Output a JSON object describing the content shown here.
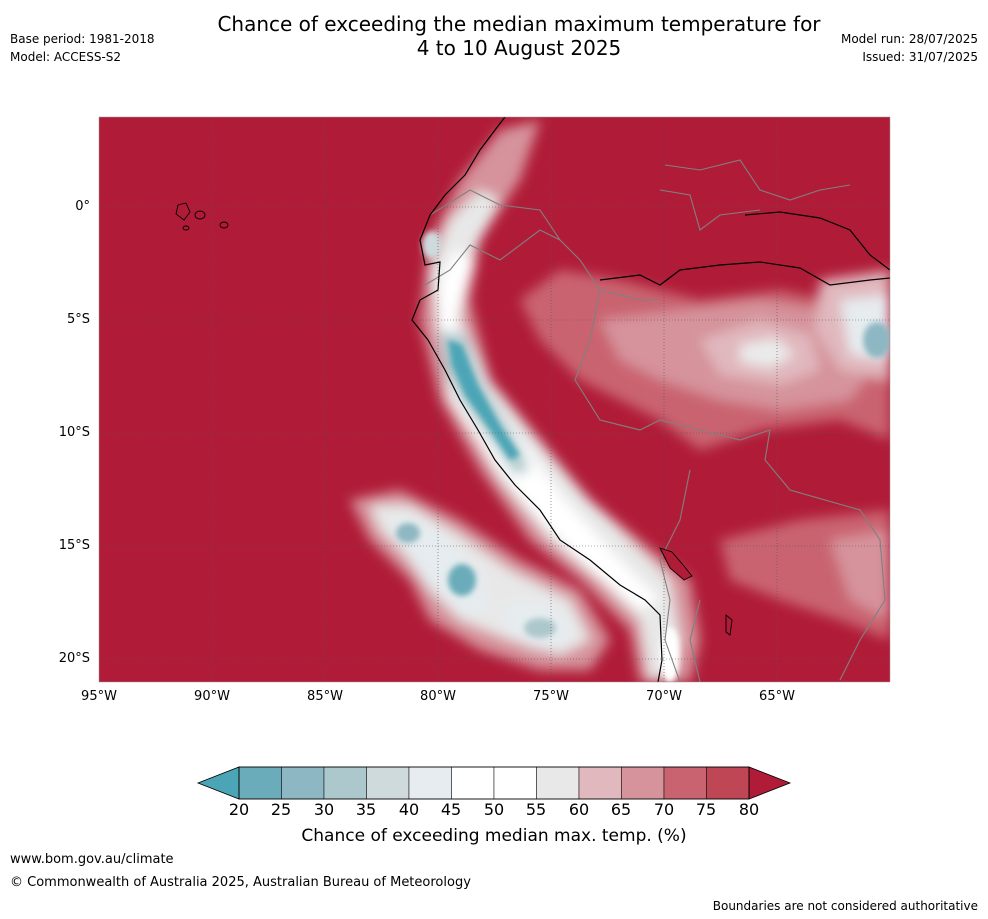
{
  "header": {
    "title_line1": "Chance of exceeding the median maximum temperature for",
    "title_line2": "4 to 10 August 2025",
    "base_period": "Base period: 1981-2018",
    "model": "Model: ACCESS-S2",
    "model_run": "Model run: 28/07/2025",
    "issued": "Issued: 31/07/2025"
  },
  "map": {
    "lat_labels": [
      "0°",
      "5°S",
      "10°S",
      "15°S",
      "20°S"
    ],
    "lon_labels": [
      "95°W",
      "90°W",
      "85°W",
      "80°W",
      "75°W",
      "70°W",
      "65°W"
    ],
    "colors": {
      "above_80": "#b01c38",
      "c75_80": "#bf4655",
      "c70_75": "#c96370",
      "c65_70": "#d6939b",
      "c60_65": "#e0b8bd",
      "c55_60": "#ebebeb",
      "c45_55": "#ffffff",
      "c40_45": "#e6ecef",
      "c35_40": "#cfdadd",
      "c30_35": "#acc8cc",
      "c25_30": "#8db7c2",
      "c20_25": "#6aacb9",
      "below_20": "#4ba5b6",
      "coast": "#000000",
      "border": "#808080",
      "grid": "#555555"
    }
  },
  "colorbar": {
    "ticks": [
      "20",
      "25",
      "30",
      "35",
      "40",
      "45",
      "50",
      "55",
      "60",
      "65",
      "70",
      "75",
      "80"
    ],
    "label": "Chance of exceeding median max. temp. (%)",
    "colors": [
      "#6aacb9",
      "#8db7c2",
      "#acc8cc",
      "#cfdadd",
      "#e6ecef",
      "#ffffff",
      "#ffffff",
      "#e8e8e8",
      "#e0b8bd",
      "#d6939b",
      "#c96370",
      "#bf4655"
    ],
    "low_extend_color": "#4ba5b6",
    "high_extend_color": "#b01c38"
  },
  "footer": {
    "site": "www.bom.gov.au/climate",
    "copyright": "© Commonwealth of Australia 2025, Australian Bureau of Meteorology",
    "disclaimer": "Boundaries are not considered authoritative"
  }
}
